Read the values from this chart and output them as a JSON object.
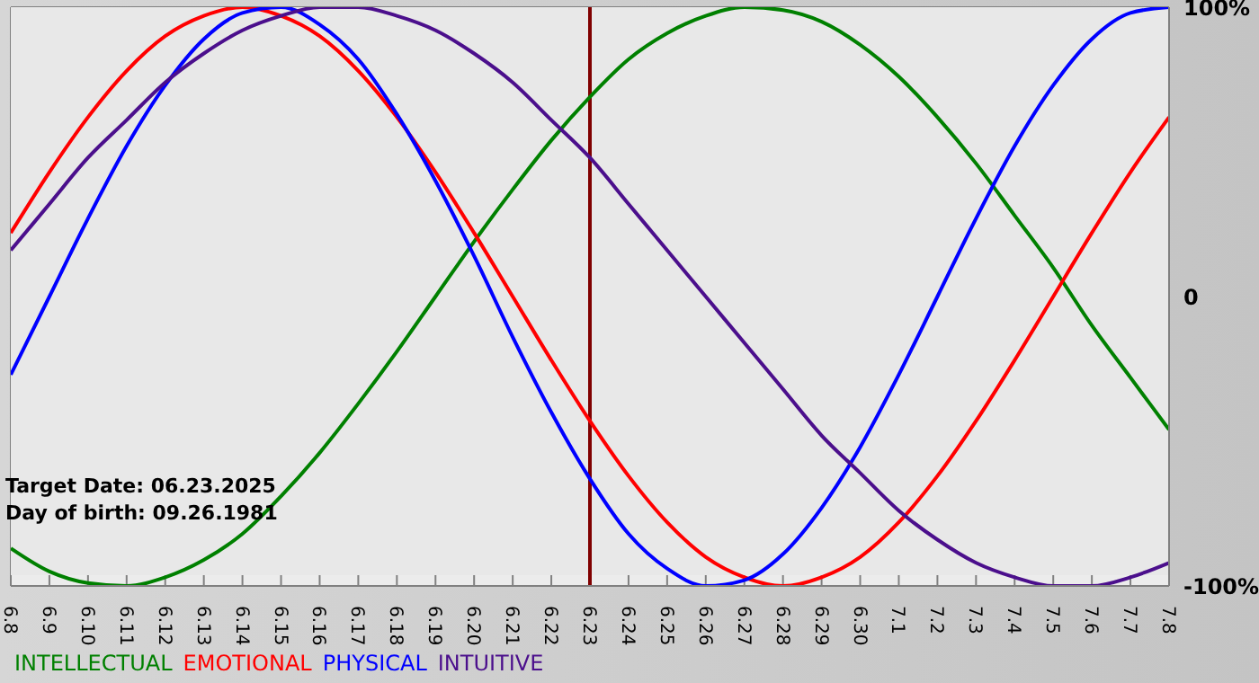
{
  "chart_data": {
    "type": "line",
    "categories": [
      "6.8",
      "6.9",
      "6.10",
      "6.11",
      "6.12",
      "6.13",
      "6.14",
      "6.15",
      "6.16",
      "6.17",
      "6.18",
      "6.19",
      "6.20",
      "6.21",
      "6.22",
      "6.23",
      "6.24",
      "6.25",
      "6.26",
      "6.27",
      "6.28",
      "6.29",
      "6.30",
      "7.1",
      "7.2",
      "7.3",
      "7.4",
      "7.5",
      "7.6",
      "7.7",
      "7.8"
    ],
    "series": [
      {
        "name": "INTELLECTUAL",
        "color": "#008000",
        "values": [
          -87,
          -95,
          -99,
          -100,
          -97,
          -91,
          -82,
          -69,
          -54,
          -37,
          -19,
          0,
          19,
          37,
          54,
          69,
          82,
          91,
          97,
          100,
          99,
          95,
          87,
          76,
          62,
          46,
          28,
          10,
          -10,
          -28,
          -46
        ]
      },
      {
        "name": "EMOTIONAL",
        "color": "#ff0000",
        "values": [
          22,
          43,
          62,
          78,
          90,
          97,
          100,
          97,
          90,
          78,
          62,
          43,
          22,
          0,
          -22,
          -43,
          -62,
          -78,
          -90,
          -97,
          -100,
          -97,
          -90,
          -78,
          -62,
          -43,
          -22,
          0,
          22,
          43,
          62
        ]
      },
      {
        "name": "PHYSICAL",
        "color": "#0000ff",
        "values": [
          -27,
          0,
          27,
          52,
          73,
          89,
          98,
          100,
          94,
          82,
          63,
          40,
          14,
          -14,
          -40,
          -63,
          -82,
          -94,
          -100,
          -98,
          -89,
          -73,
          -52,
          -27,
          0,
          27,
          52,
          73,
          89,
          98,
          100
        ]
      },
      {
        "name": "INTUITIVE",
        "color": "#4b0f8c",
        "values": [
          16,
          32,
          48,
          61,
          74,
          84,
          92,
          97,
          100,
          100,
          97,
          92,
          84,
          74,
          61,
          48,
          32,
          16,
          0,
          -16,
          -32,
          -48,
          -61,
          -74,
          -84,
          -92,
          -97,
          -100,
          -100,
          -97,
          -92
        ]
      }
    ],
    "ylim": [
      -100,
      100
    ],
    "yticks": [
      {
        "value": -100,
        "label": "-100%"
      },
      0,
      {
        "value": 100,
        "label": "100%"
      }
    ],
    "grid": true,
    "legend": "bottom left",
    "marker": "none",
    "line_style": "solid",
    "ref_lines": [
      {
        "axis": "x",
        "value": "6.23",
        "color": "#800000"
      }
    ],
    "annotations": [
      "Target Date: 06.23.2025",
      "Day of birth: 09.26.1981"
    ]
  }
}
